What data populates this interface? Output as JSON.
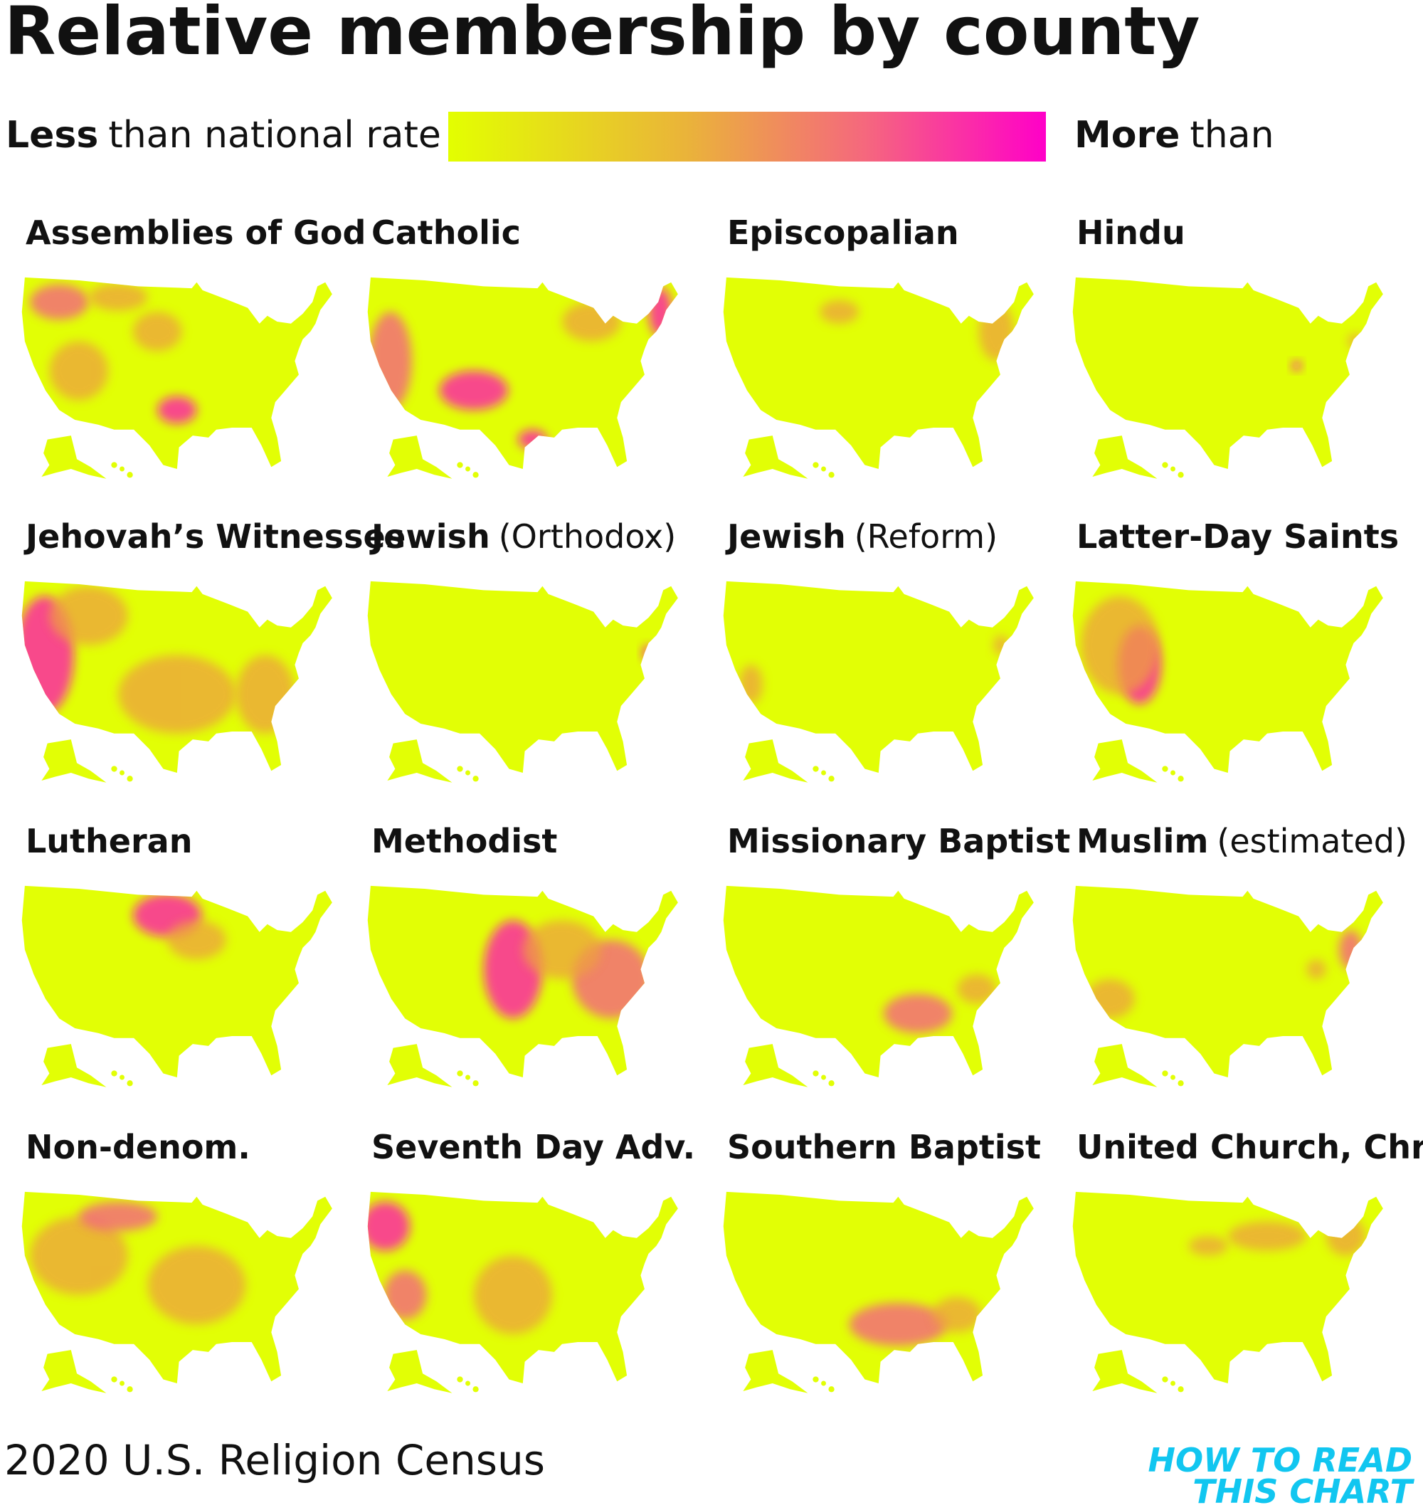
{
  "title": "Relative membership by county",
  "legend": {
    "low": {
      "bold": "Less",
      "rest": "than national rate"
    },
    "high": {
      "bold": "More",
      "rest": "than"
    }
  },
  "panels": [
    {
      "name": "Assemblies of God"
    },
    {
      "name": "Catholic"
    },
    {
      "name": "Episcopalian"
    },
    {
      "name": "Hindu"
    },
    {
      "name": "Jehovah’s Witnesses"
    },
    {
      "name": "Jewish",
      "qualifier": "(Orthodox)"
    },
    {
      "name": "Jewish",
      "qualifier": "(Reform)"
    },
    {
      "name": "Latter-Day Saints"
    },
    {
      "name": "Lutheran"
    },
    {
      "name": "Methodist"
    },
    {
      "name": "Missionary Baptist"
    },
    {
      "name": "Muslim",
      "qualifier": "(estimated)"
    },
    {
      "name": "Non-denom."
    },
    {
      "name": "Seventh Day Adv."
    },
    {
      "name": "Southern Baptist"
    },
    {
      "name": "United Church, Christ"
    }
  ],
  "source": "2020 U.S. Religion Census",
  "logo": [
    "HOW TO READ",
    "THIS CHART"
  ]
}
